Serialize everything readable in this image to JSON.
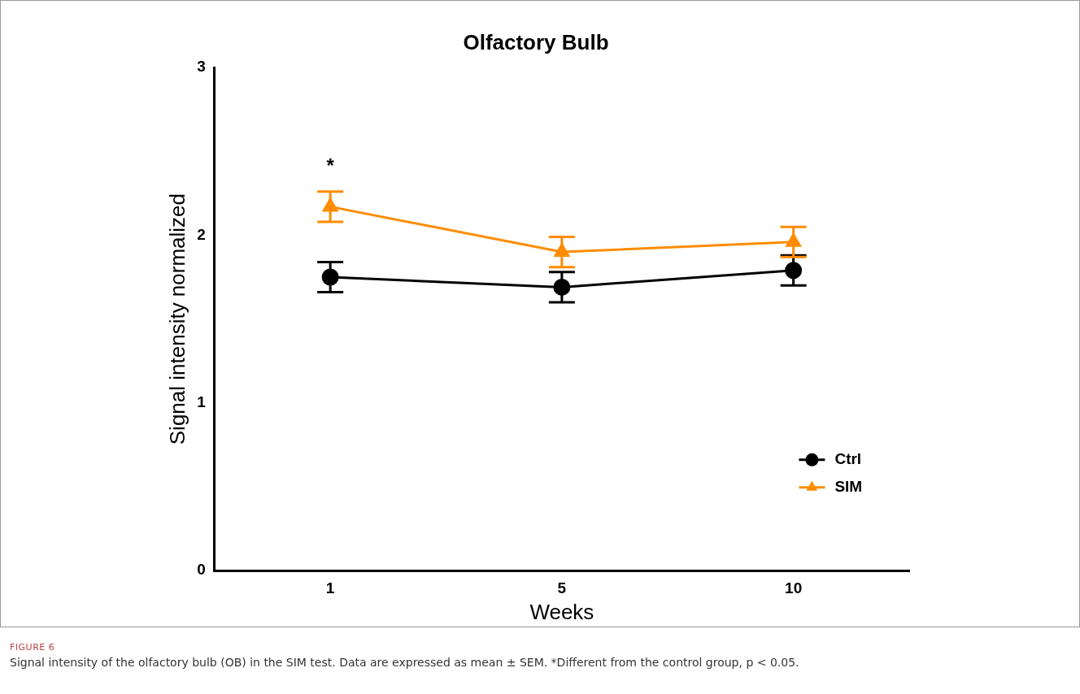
{
  "chart_data": {
    "type": "line",
    "title": "Olfactory Bulb",
    "xlabel": "Weeks",
    "ylabel": "Signal intensity normalized",
    "categories": [
      "1",
      "5",
      "10"
    ],
    "series": [
      {
        "name": "Ctrl",
        "color": "#000000",
        "marker": "circle",
        "values": [
          1.75,
          1.69,
          1.79
        ],
        "errors": [
          0.09,
          0.09,
          0.09
        ]
      },
      {
        "name": "SIM",
        "color": "#ff8c00",
        "marker": "triangle",
        "values": [
          2.17,
          1.9,
          1.96
        ],
        "errors": [
          0.09,
          0.09,
          0.09
        ]
      }
    ],
    "ylim": [
      0,
      3
    ],
    "yticks": [
      0,
      1,
      2,
      3
    ],
    "grid": false,
    "legend": "bottom right",
    "annotations": [
      "*",
      "FIGURE 6",
      "Signal intensity of the olfactory bulb (OB) in the SIM test. Data are expressed as mean ± SEM. *Different from the control group, p < 0.05."
    ]
  }
}
